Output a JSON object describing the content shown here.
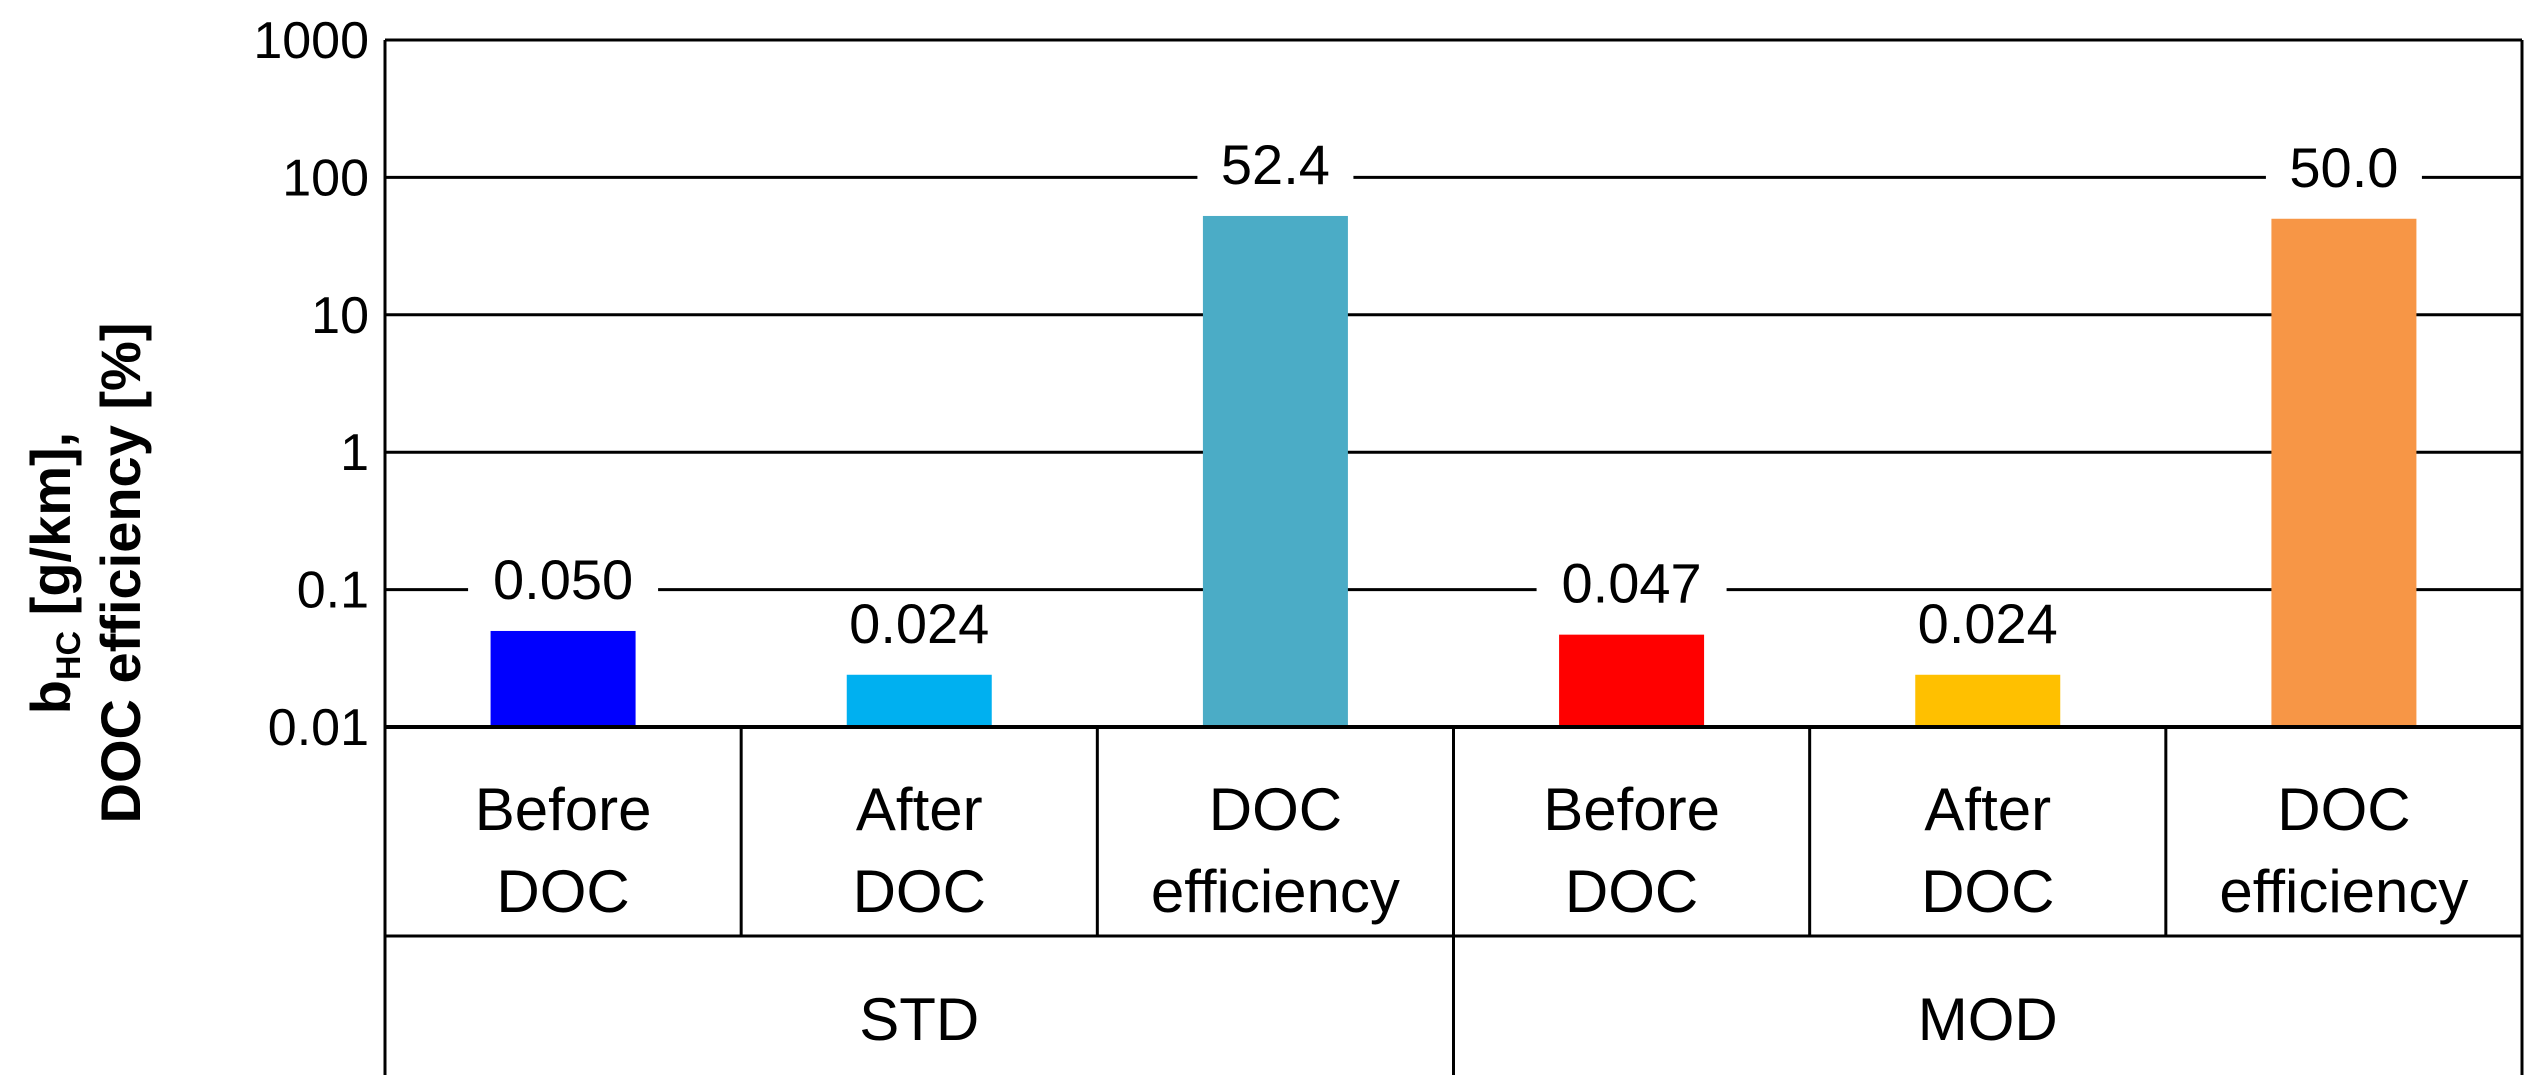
{
  "chart_data": {
    "type": "bar",
    "scale": "log",
    "ylim": [
      0.01,
      1000
    ],
    "yticks": [
      {
        "value": 0.01,
        "label": "0.01"
      },
      {
        "value": 0.1,
        "label": "0.1"
      },
      {
        "value": 1,
        "label": "1"
      },
      {
        "value": 10,
        "label": "10"
      },
      {
        "value": 100,
        "label": "100"
      },
      {
        "value": 1000,
        "label": "1000"
      }
    ],
    "ylabel": {
      "line1_main": "b",
      "line1_sub": "HC",
      "line1_rest": " [g/km],",
      "line2": "DOC efficiency [%]"
    },
    "grid": true,
    "groups": [
      {
        "name": "STD",
        "count": 3
      },
      {
        "name": "MOD",
        "count": 3
      }
    ],
    "bars": [
      {
        "line1": "Before",
        "line2": "DOC",
        "group": "STD",
        "value": 0.05,
        "label": "0.050",
        "color": "#0000ff"
      },
      {
        "line1": "After",
        "line2": "DOC",
        "group": "STD",
        "value": 0.024,
        "label": "0.024",
        "color": "#00b0f0"
      },
      {
        "line1": "DOC",
        "line2": "efficiency",
        "group": "STD",
        "value": 52.4,
        "label": "52.4",
        "color": "#4bacc6"
      },
      {
        "line1": "Before",
        "line2": "DOC",
        "group": "MOD",
        "value": 0.047,
        "label": "0.047",
        "color": "#ff0000"
      },
      {
        "line1": "After",
        "line2": "DOC",
        "group": "MOD",
        "value": 0.024,
        "label": "0.024",
        "color": "#ffc000"
      },
      {
        "line1": "DOC",
        "line2": "efficiency",
        "group": "MOD",
        "value": 50.0,
        "label": "50.0",
        "color": "#f79646"
      }
    ]
  }
}
